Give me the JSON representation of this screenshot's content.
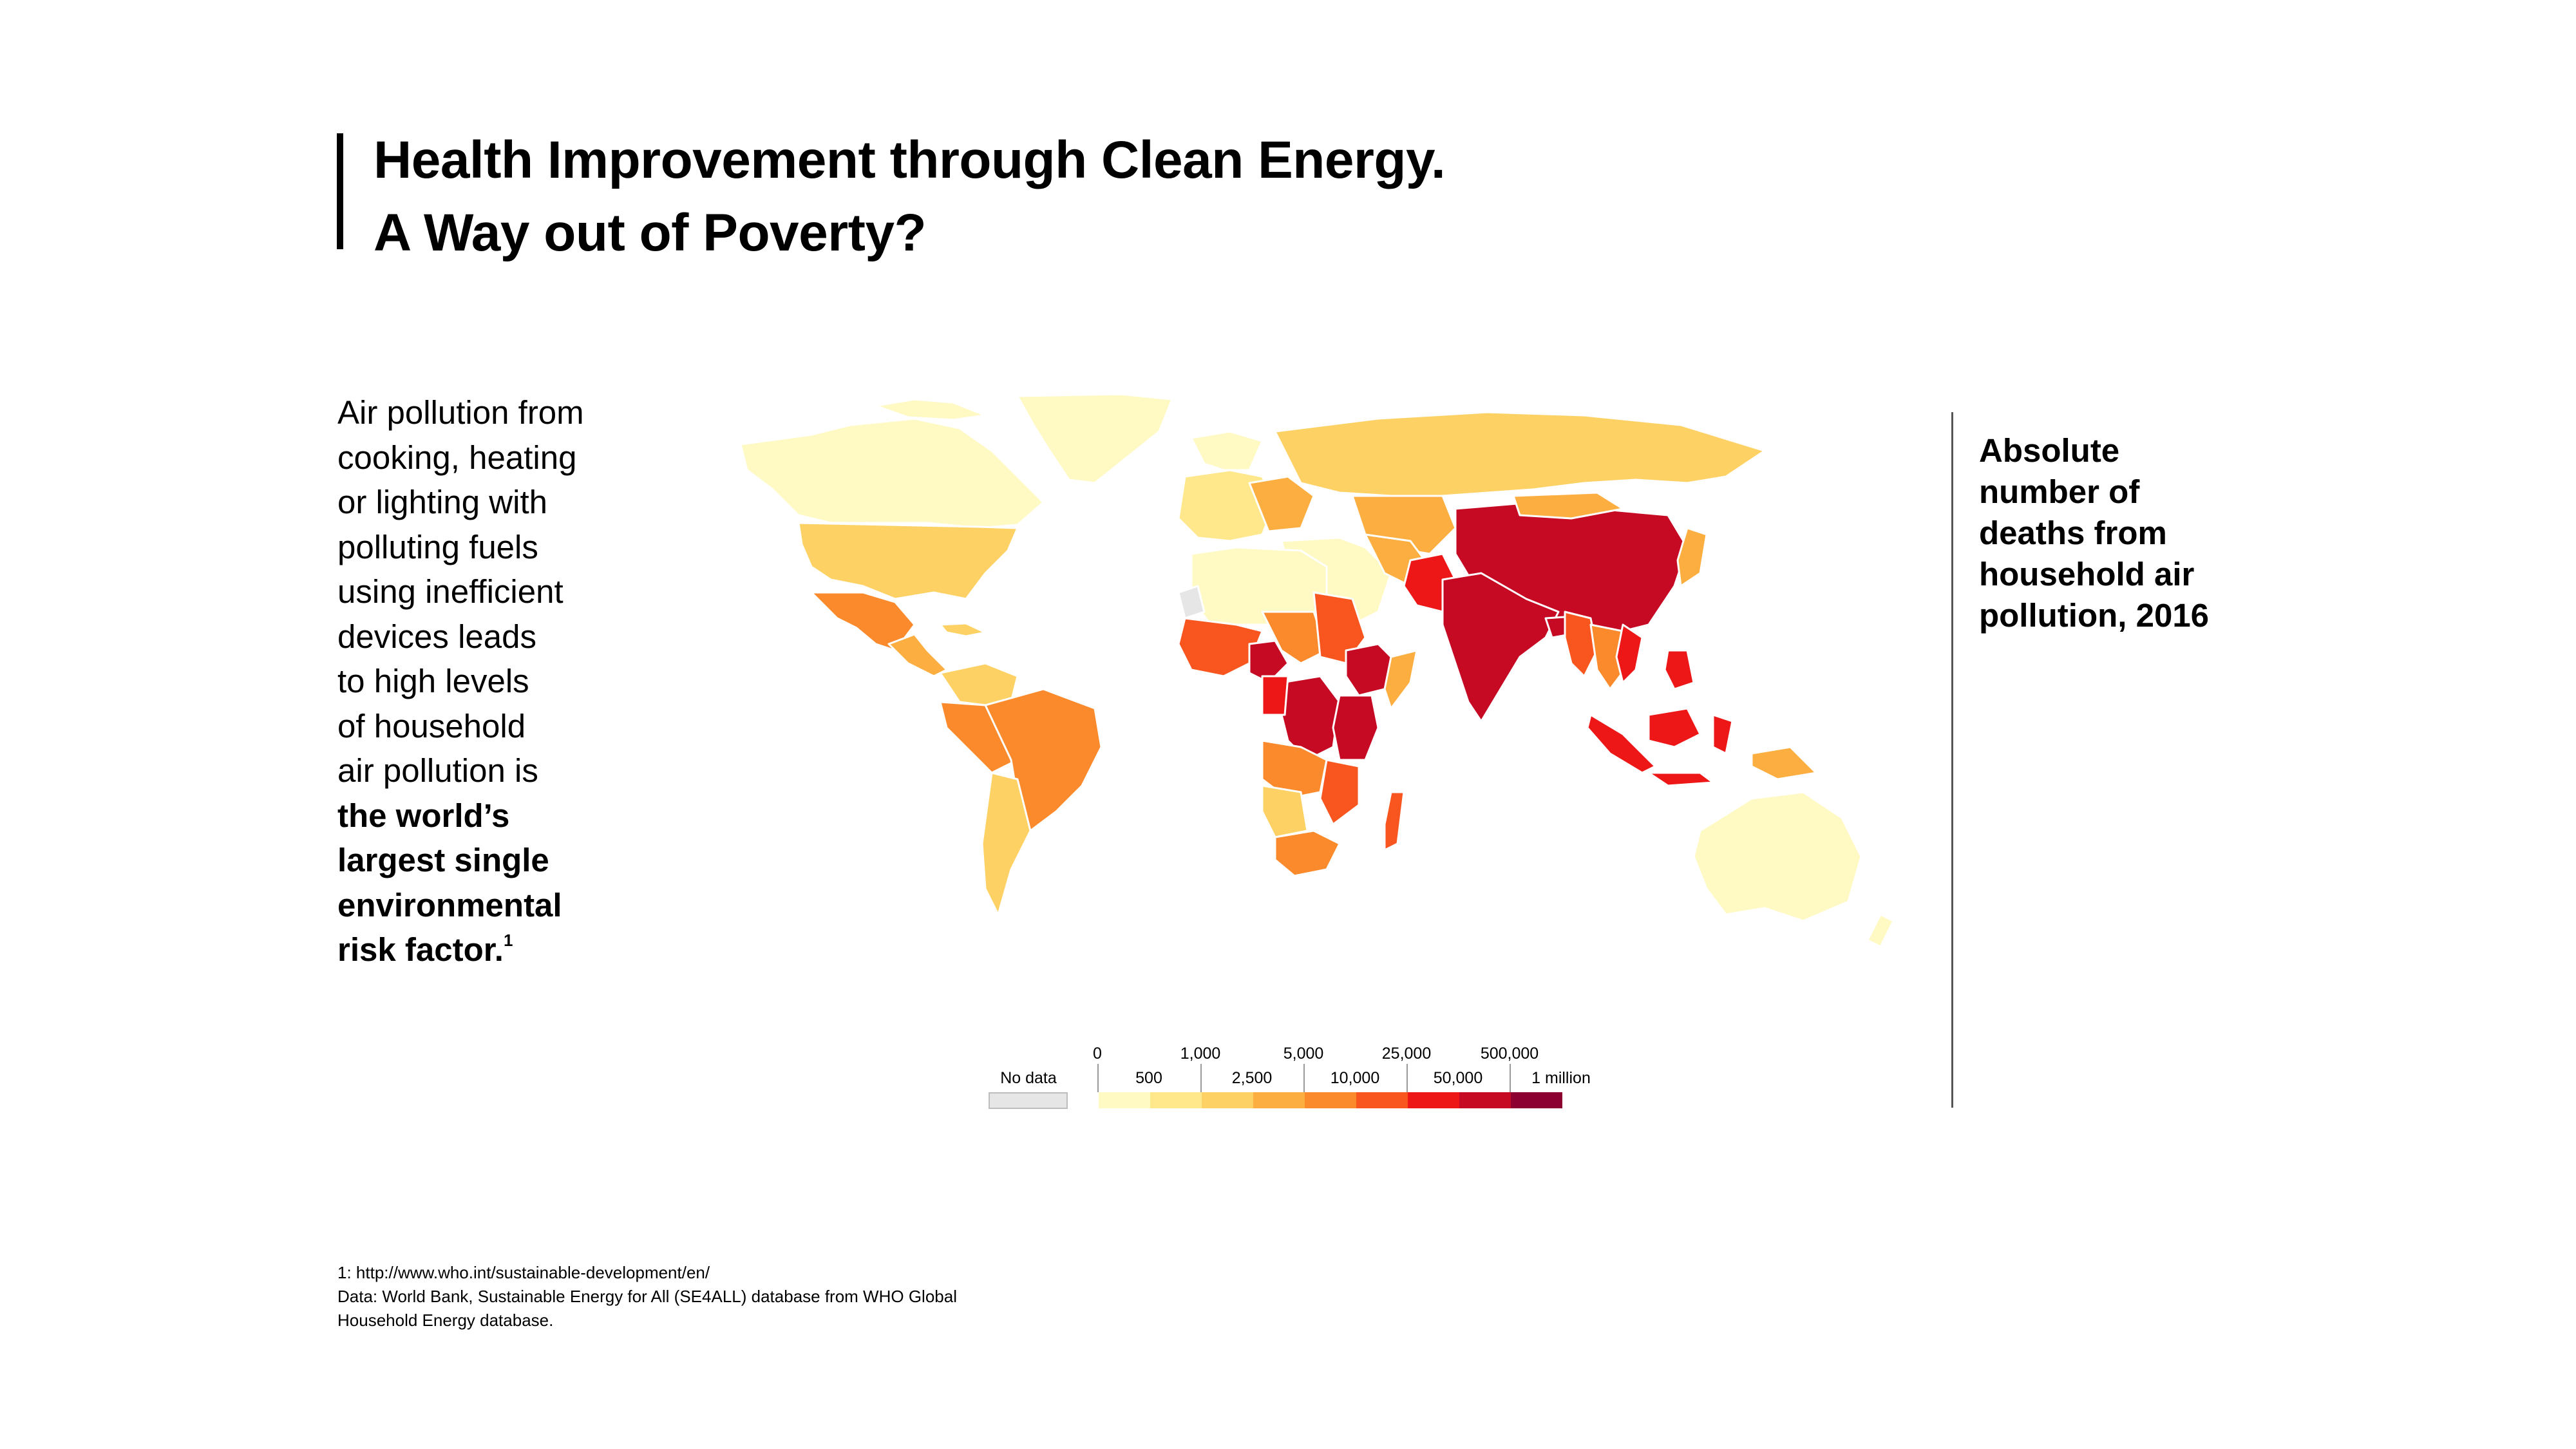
{
  "title": {
    "line1": "Health Improvement through Clean Energy.",
    "line2": "A Way out of Poverty?"
  },
  "lead_text": {
    "lines": [
      "Air pollution from",
      "cooking, heating",
      "or lighting with",
      "polluting fuels",
      "using inefficient",
      "devices leads",
      "to high levels",
      "of household",
      "air pollution is"
    ],
    "bold_lines": [
      "the world’s",
      "largest single",
      "environmental",
      "risk factor."
    ],
    "footnote_marker": "1"
  },
  "map_label": {
    "lines": [
      "Absolute",
      "number of",
      "deaths from",
      "household air",
      "pollution, 2016"
    ]
  },
  "legend": {
    "no_data_label": "No data",
    "no_data_color": "#e6e6e6",
    "top_labels": [
      "0",
      "1,000",
      "5,000",
      "25,000",
      "500,000"
    ],
    "bottom_labels": [
      "500",
      "2,500",
      "10,000",
      "50,000",
      "1 million"
    ],
    "colors": [
      "#fff9c4",
      "#ffe88c",
      "#fdd164",
      "#fdae40",
      "#fb8a2d",
      "#f9561f",
      "#ee1717",
      "#c60a24",
      "#8b0030"
    ]
  },
  "chart_data": {
    "type": "choropleth",
    "metric": "Absolute number of deaths from household air pollution, 2016",
    "bins": [
      "0",
      "500",
      "1,000",
      "2,500",
      "5,000",
      "10,000",
      "25,000",
      "50,000",
      "500,000",
      "1 million"
    ],
    "regions": [
      {
        "region": "China",
        "bin": "500,000 – 1 million"
      },
      {
        "region": "India",
        "bin": "500,000 – 1 million"
      },
      {
        "region": "Pakistan",
        "bin": "50,000 – 500,000"
      },
      {
        "region": "Bangladesh",
        "bin": "50,000 – 500,000"
      },
      {
        "region": "Indonesia",
        "bin": "50,000 – 500,000"
      },
      {
        "region": "Philippines",
        "bin": "50,000 – 500,000"
      },
      {
        "region": "Myanmar",
        "bin": "25,000 – 50,000"
      },
      {
        "region": "Vietnam",
        "bin": "25,000 – 50,000"
      },
      {
        "region": "Nigeria",
        "bin": "50,000 – 500,000"
      },
      {
        "region": "Ethiopia",
        "bin": "50,000 – 500,000"
      },
      {
        "region": "DR Congo",
        "bin": "50,000 – 500,000"
      },
      {
        "region": "Tanzania",
        "bin": "50,000 – 500,000"
      },
      {
        "region": "Kenya",
        "bin": "25,000 – 50,000"
      },
      {
        "region": "Uganda",
        "bin": "25,000 – 50,000"
      },
      {
        "region": "Sahel",
        "bin": "10,000 – 25,000"
      },
      {
        "region": "Madagascar",
        "bin": "10,000 – 25,000"
      },
      {
        "region": "Brazil",
        "bin": "5,000 – 10,000"
      },
      {
        "region": "Mexico",
        "bin": "5,000 – 10,000"
      },
      {
        "region": "Peru",
        "bin": "2,500 – 5,000"
      },
      {
        "region": "Argentina",
        "bin": "1,000 – 2,500"
      },
      {
        "region": "United States",
        "bin": "1,000 – 2,500"
      },
      {
        "region": "Russia",
        "bin": "1,000 – 2,500"
      },
      {
        "region": "Canada",
        "bin": "0 – 500"
      },
      {
        "region": "Australia",
        "bin": "0 – 500"
      },
      {
        "region": "Greenland",
        "bin": "0 – 500"
      },
      {
        "region": "North Africa",
        "bin": "0 – 500"
      },
      {
        "region": "Western Sahara",
        "bin": "No data"
      }
    ]
  },
  "footnote": {
    "lines": [
      "1: http://www.who.int/sustainable-development/en/",
      "Data: World Bank, Sustainable Energy for All (SE4ALL) database from WHO Global",
      "Household Energy database."
    ]
  }
}
